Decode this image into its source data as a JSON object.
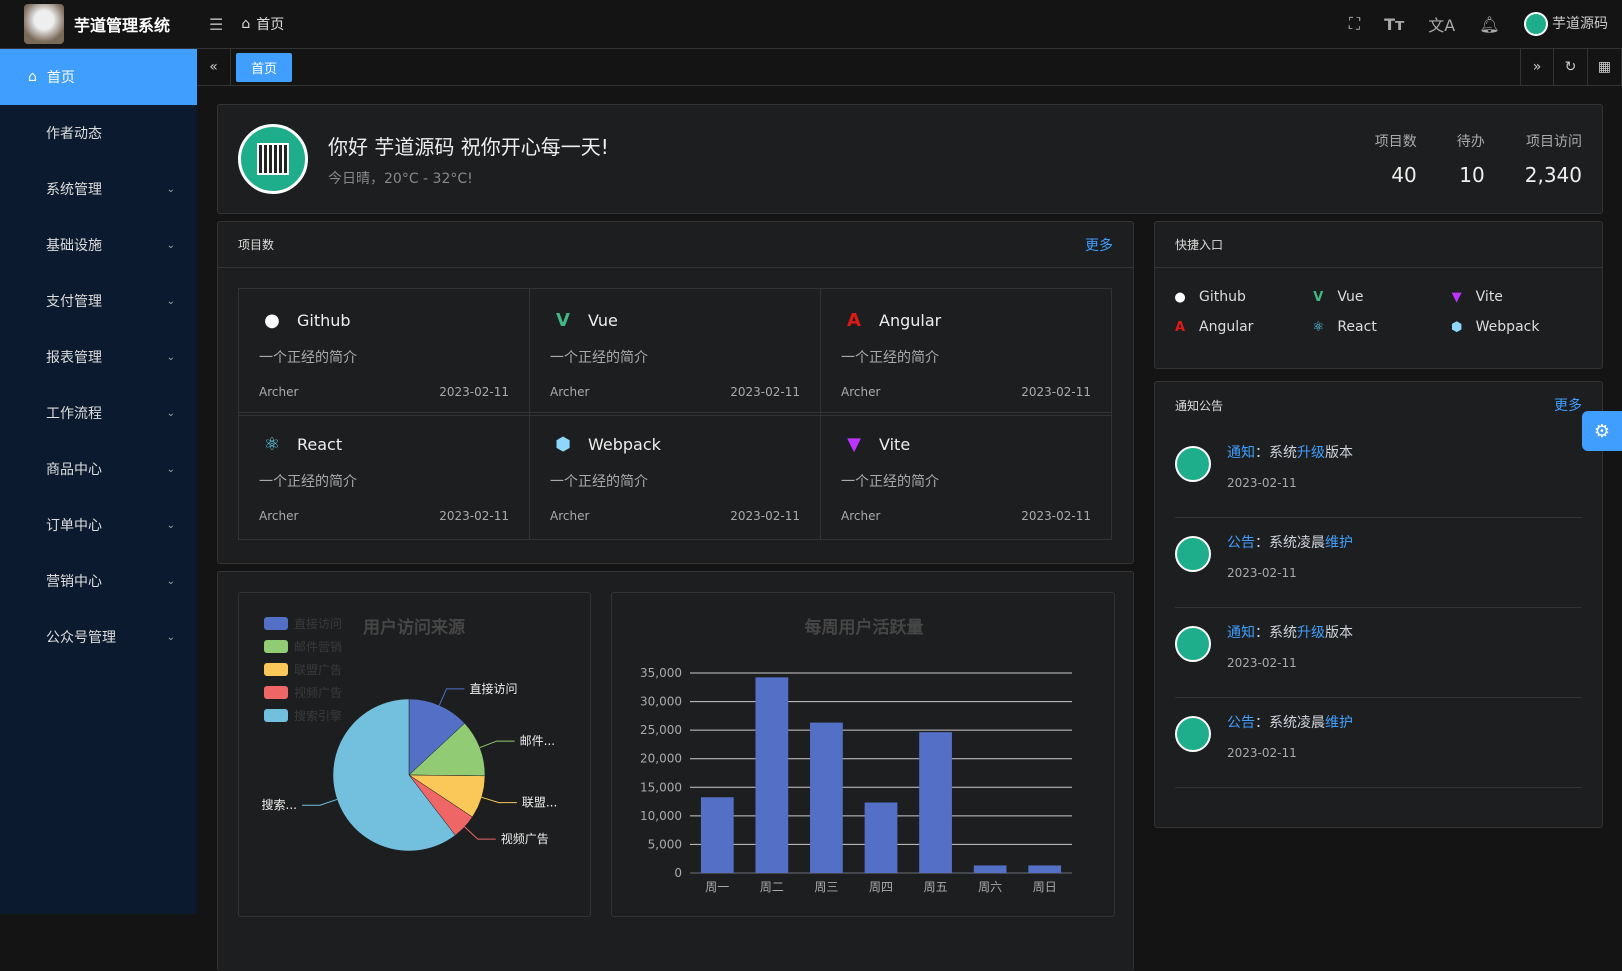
{
  "app": {
    "title": "芋道管理系统",
    "user": "芋道源码"
  },
  "header": {
    "breadcrumb": "首页"
  },
  "sidebar": {
    "items": [
      {
        "label": "首页"
      },
      {
        "label": "作者动态"
      },
      {
        "label": "系统管理"
      },
      {
        "label": "基础设施"
      },
      {
        "label": "支付管理"
      },
      {
        "label": "报表管理"
      },
      {
        "label": "工作流程"
      },
      {
        "label": "商品中心"
      },
      {
        "label": "订单中心"
      },
      {
        "label": "营销中心"
      },
      {
        "label": "公众号管理"
      }
    ]
  },
  "tabs": [
    {
      "label": "首页"
    }
  ],
  "welcome": {
    "greeting": "你好 芋道源码 祝你开心每一天!",
    "weather": "今日晴，20°C - 32°C!",
    "stats": [
      {
        "label": "项目数",
        "value": "40"
      },
      {
        "label": "待办",
        "value": "10"
      },
      {
        "label": "项目访问",
        "value": "2,340"
      }
    ]
  },
  "projects": {
    "title": "项目数",
    "more": "更多",
    "items": [
      {
        "name": "Github",
        "desc": "一个正经的简介",
        "author": "Archer",
        "date": "2023-02-11",
        "icon": "github-icon",
        "color": "#ffffff"
      },
      {
        "name": "Vue",
        "desc": "一个正经的简介",
        "author": "Archer",
        "date": "2023-02-11",
        "icon": "vue-icon",
        "color": "#42b883"
      },
      {
        "name": "Angular",
        "desc": "一个正经的简介",
        "author": "Archer",
        "date": "2023-02-11",
        "icon": "angular-icon",
        "color": "#dd1b16"
      },
      {
        "name": "React",
        "desc": "一个正经的简介",
        "author": "Archer",
        "date": "2023-02-11",
        "icon": "react-icon",
        "color": "#61dafb"
      },
      {
        "name": "Webpack",
        "desc": "一个正经的简介",
        "author": "Archer",
        "date": "2023-02-11",
        "icon": "webpack-icon",
        "color": "#8ed6fb"
      },
      {
        "name": "Vite",
        "desc": "一个正经的简介",
        "author": "Archer",
        "date": "2023-02-11",
        "icon": "vite-icon",
        "color": "#bd34fe"
      }
    ]
  },
  "quick": {
    "title": "快捷入口",
    "items": [
      {
        "name": "Github"
      },
      {
        "name": "Vue"
      },
      {
        "name": "Vite"
      },
      {
        "name": "Angular"
      },
      {
        "name": "React"
      },
      {
        "name": "Webpack"
      }
    ]
  },
  "notices": {
    "title": "通知公告",
    "more": "更多",
    "items": [
      {
        "type": "通知",
        "pre": "：系统",
        "hl": "升级",
        "post": "版本",
        "date": "2023-02-11"
      },
      {
        "type": "公告",
        "pre": "：系统凌晨",
        "hl": "维护",
        "post": "",
        "date": "2023-02-11"
      },
      {
        "type": "通知",
        "pre": "：系统",
        "hl": "升级",
        "post": "版本",
        "date": "2023-02-11"
      },
      {
        "type": "公告",
        "pre": "：系统凌晨",
        "hl": "维护",
        "post": "",
        "date": "2023-02-11"
      }
    ]
  },
  "chart_data": [
    {
      "type": "pie",
      "title": "用户访问来源",
      "legend_position": "top-left",
      "categories": [
        "直接访问",
        "邮件营销",
        "联盟广告",
        "视频广告",
        "搜索引擎"
      ],
      "labels": [
        "直接访问",
        "邮件...",
        "联盟...",
        "视频广告",
        "搜索..."
      ],
      "values": [
        335,
        310,
        234,
        135,
        1548
      ],
      "colors": [
        "#5470c6",
        "#91cc75",
        "#fac858",
        "#ee6666",
        "#73c0de"
      ]
    },
    {
      "type": "bar",
      "title": "每周用户活跃量",
      "categories": [
        "周一",
        "周二",
        "周三",
        "周四",
        "周五",
        "周六",
        "周日"
      ],
      "values": [
        13253,
        34235,
        26321,
        12340,
        24643,
        1322,
        1324
      ],
      "ylim": [
        0,
        35000
      ],
      "yticks": [
        "0",
        "5,000",
        "10,000",
        "15,000",
        "20,000",
        "25,000",
        "30,000",
        "35,000"
      ],
      "grid": true,
      "color": "#5470c6"
    }
  ]
}
